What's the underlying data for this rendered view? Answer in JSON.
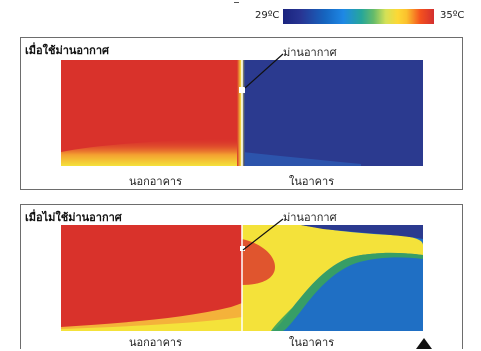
{
  "legend": {
    "min_label": "29ºC",
    "max_label": "35ºC",
    "colors": [
      "#1a237e",
      "#1e88e5",
      "#26a69a",
      "#d4e157",
      "#fdd835",
      "#d32f2f"
    ]
  },
  "panels": [
    {
      "title": "เมื่อใช้ม่านอากาศ",
      "curtain_label": "ม่านอากาศ",
      "outside_label": "นอกอาคาร",
      "inside_label": "ในอาคาร"
    },
    {
      "title": "เมื่อไม่ใช้ม่านอากาศ",
      "curtain_label": "ม่านอากาศ",
      "outside_label": "นอกอาคาร",
      "inside_label": "ในอาคาร"
    }
  ],
  "colors": {
    "hot": "#d9322b",
    "cold_dark": "#2b3a8f",
    "cold_blue": "#1f6fc4",
    "warm_yellow": "#f4e23a",
    "green": "#3aa35c"
  }
}
